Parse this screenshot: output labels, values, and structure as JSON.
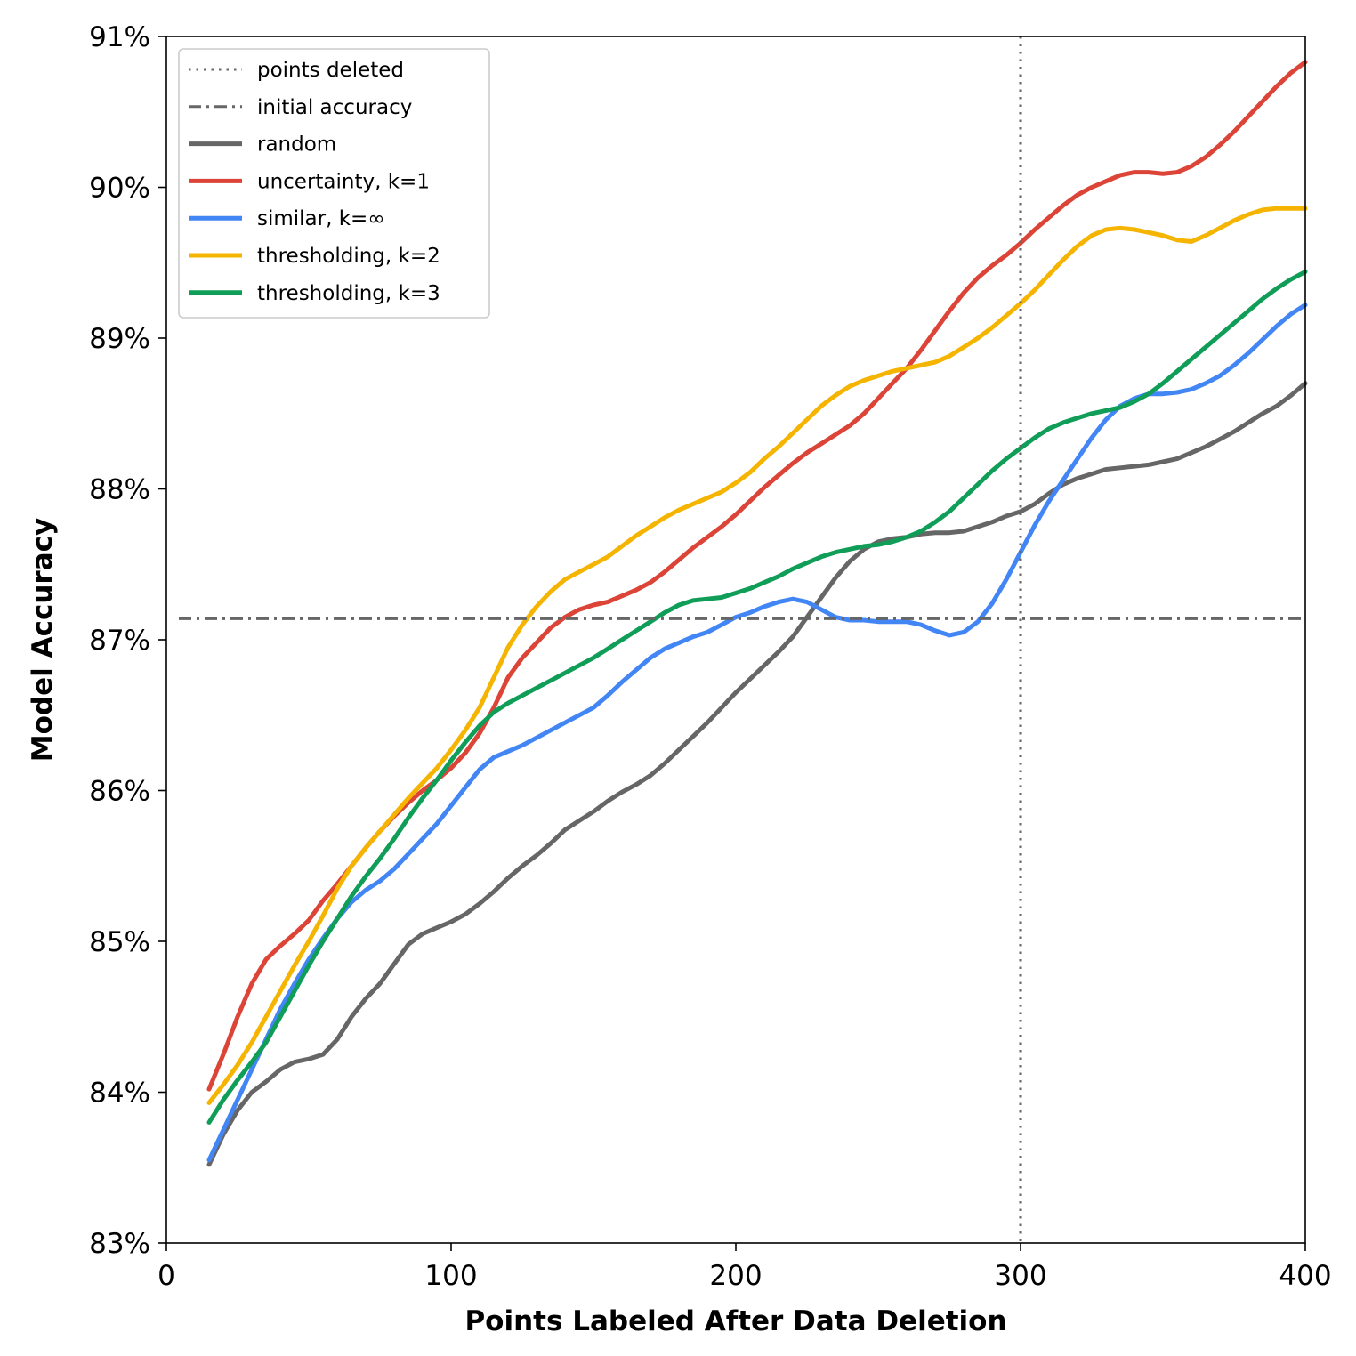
{
  "chart_data": {
    "type": "line",
    "xlabel": "Points Labeled After Data Deletion",
    "ylabel": "Model Accuracy",
    "xlim": [
      0,
      400
    ],
    "ylim": [
      83,
      91
    ],
    "x_ticks": [
      0,
      100,
      200,
      300,
      400
    ],
    "y_ticks": [
      83,
      84,
      85,
      86,
      87,
      88,
      89,
      90,
      91
    ],
    "x_tick_labels": [
      "0",
      "100",
      "200",
      "300",
      "400"
    ],
    "y_tick_labels": [
      "83%",
      "84%",
      "85%",
      "86%",
      "87%",
      "88%",
      "89%",
      "90%",
      "91%"
    ],
    "grid": false,
    "legend_position": "upper-left",
    "reference_lines": [
      {
        "name": "points deleted",
        "orientation": "vertical",
        "value": 300,
        "style": "dotted",
        "color": "#666666"
      },
      {
        "name": "initial accuracy",
        "orientation": "horizontal",
        "value": 87.14,
        "style": "dashdot",
        "color": "#666666"
      }
    ],
    "series": [
      {
        "name": "random",
        "color": "#666666",
        "x": [
          15,
          20,
          25,
          30,
          35,
          40,
          45,
          50,
          55,
          60,
          65,
          70,
          75,
          80,
          85,
          90,
          95,
          100,
          105,
          110,
          115,
          120,
          125,
          130,
          135,
          140,
          145,
          150,
          155,
          160,
          165,
          170,
          175,
          180,
          185,
          190,
          195,
          200,
          205,
          210,
          215,
          220,
          225,
          230,
          235,
          240,
          245,
          250,
          255,
          260,
          265,
          270,
          275,
          280,
          285,
          290,
          295,
          300,
          305,
          310,
          315,
          320,
          325,
          330,
          335,
          340,
          345,
          350,
          355,
          360,
          365,
          370,
          375,
          380,
          385,
          390,
          395,
          400
        ],
        "values": [
          83.52,
          83.72,
          83.88,
          84.0,
          84.07,
          84.15,
          84.2,
          84.22,
          84.25,
          84.35,
          84.5,
          84.62,
          84.72,
          84.85,
          84.98,
          85.05,
          85.09,
          85.13,
          85.18,
          85.25,
          85.33,
          85.42,
          85.5,
          85.57,
          85.65,
          85.74,
          85.8,
          85.86,
          85.93,
          85.99,
          86.04,
          86.1,
          86.18,
          86.27,
          86.36,
          86.45,
          86.55,
          86.65,
          86.74,
          86.83,
          86.92,
          87.02,
          87.15,
          87.28,
          87.41,
          87.52,
          87.6,
          87.65,
          87.67,
          87.68,
          87.7,
          87.71,
          87.71,
          87.72,
          87.75,
          87.78,
          87.82,
          87.85,
          87.9,
          87.97,
          88.03,
          88.07,
          88.1,
          88.13,
          88.14,
          88.15,
          88.16,
          88.18,
          88.2,
          88.24,
          88.28,
          88.33,
          88.38,
          88.44,
          88.5,
          88.55,
          88.62,
          88.7
        ]
      },
      {
        "name": "uncertainty, k=1",
        "color": "#db4437",
        "x": [
          15,
          20,
          25,
          30,
          35,
          40,
          45,
          50,
          55,
          60,
          65,
          70,
          75,
          80,
          85,
          90,
          95,
          100,
          105,
          110,
          115,
          120,
          125,
          130,
          135,
          140,
          145,
          150,
          155,
          160,
          165,
          170,
          175,
          180,
          185,
          190,
          195,
          200,
          205,
          210,
          215,
          220,
          225,
          230,
          235,
          240,
          245,
          250,
          255,
          260,
          265,
          270,
          275,
          280,
          285,
          290,
          295,
          300,
          305,
          310,
          315,
          320,
          325,
          330,
          335,
          340,
          345,
          350,
          355,
          360,
          365,
          370,
          375,
          380,
          385,
          390,
          395,
          400
        ],
        "values": [
          84.02,
          84.25,
          84.5,
          84.72,
          84.88,
          84.97,
          85.05,
          85.14,
          85.27,
          85.38,
          85.5,
          85.62,
          85.73,
          85.83,
          85.92,
          86.0,
          86.07,
          86.15,
          86.25,
          86.38,
          86.55,
          86.75,
          86.88,
          86.98,
          87.08,
          87.15,
          87.2,
          87.23,
          87.25,
          87.29,
          87.33,
          87.38,
          87.45,
          87.53,
          87.61,
          87.68,
          87.75,
          87.83,
          87.92,
          88.01,
          88.09,
          88.17,
          88.24,
          88.3,
          88.36,
          88.42,
          88.5,
          88.6,
          88.7,
          88.8,
          88.92,
          89.05,
          89.18,
          89.3,
          89.4,
          89.48,
          89.55,
          89.63,
          89.72,
          89.8,
          89.88,
          89.95,
          90.0,
          90.04,
          90.08,
          90.1,
          90.1,
          90.09,
          90.1,
          90.14,
          90.2,
          90.28,
          90.37,
          90.47,
          90.57,
          90.67,
          90.76,
          90.83
        ]
      },
      {
        "name": "similar, k=∞",
        "color": "#4285f4",
        "x": [
          15,
          20,
          25,
          30,
          35,
          40,
          45,
          50,
          55,
          60,
          65,
          70,
          75,
          80,
          85,
          90,
          95,
          100,
          105,
          110,
          115,
          120,
          125,
          130,
          135,
          140,
          145,
          150,
          155,
          160,
          165,
          170,
          175,
          180,
          185,
          190,
          195,
          200,
          205,
          210,
          215,
          220,
          225,
          230,
          235,
          240,
          245,
          250,
          255,
          260,
          265,
          270,
          275,
          280,
          285,
          290,
          295,
          300,
          305,
          310,
          315,
          320,
          325,
          330,
          335,
          340,
          345,
          350,
          355,
          360,
          365,
          370,
          375,
          380,
          385,
          390,
          395,
          400
        ],
        "values": [
          83.55,
          83.75,
          83.95,
          84.15,
          84.35,
          84.55,
          84.72,
          84.88,
          85.02,
          85.15,
          85.26,
          85.34,
          85.4,
          85.48,
          85.58,
          85.68,
          85.78,
          85.9,
          86.02,
          86.14,
          86.22,
          86.26,
          86.3,
          86.35,
          86.4,
          86.45,
          86.5,
          86.55,
          86.63,
          86.72,
          86.8,
          86.88,
          86.94,
          86.98,
          87.02,
          87.05,
          87.1,
          87.15,
          87.18,
          87.22,
          87.25,
          87.27,
          87.25,
          87.2,
          87.15,
          87.13,
          87.13,
          87.12,
          87.12,
          87.12,
          87.1,
          87.06,
          87.03,
          87.05,
          87.12,
          87.24,
          87.4,
          87.58,
          87.76,
          87.92,
          88.06,
          88.2,
          88.34,
          88.46,
          88.55,
          88.6,
          88.63,
          88.63,
          88.64,
          88.66,
          88.7,
          88.75,
          88.82,
          88.9,
          88.99,
          89.08,
          89.16,
          89.22
        ]
      },
      {
        "name": "thresholding, k=2",
        "color": "#f4b400",
        "x": [
          15,
          20,
          25,
          30,
          35,
          40,
          45,
          50,
          55,
          60,
          65,
          70,
          75,
          80,
          85,
          90,
          95,
          100,
          105,
          110,
          115,
          120,
          125,
          130,
          135,
          140,
          145,
          150,
          155,
          160,
          165,
          170,
          175,
          180,
          185,
          190,
          195,
          200,
          205,
          210,
          215,
          220,
          225,
          230,
          235,
          240,
          245,
          250,
          255,
          260,
          265,
          270,
          275,
          280,
          285,
          290,
          295,
          300,
          305,
          310,
          315,
          320,
          325,
          330,
          335,
          340,
          345,
          350,
          355,
          360,
          365,
          370,
          375,
          380,
          385,
          390,
          395,
          400
        ],
        "values": [
          83.93,
          84.05,
          84.18,
          84.33,
          84.5,
          84.67,
          84.84,
          85.0,
          85.17,
          85.35,
          85.5,
          85.62,
          85.73,
          85.84,
          85.95,
          86.05,
          86.15,
          86.27,
          86.4,
          86.55,
          86.75,
          86.95,
          87.1,
          87.22,
          87.32,
          87.4,
          87.45,
          87.5,
          87.55,
          87.62,
          87.69,
          87.75,
          87.81,
          87.86,
          87.9,
          87.94,
          87.98,
          88.04,
          88.11,
          88.2,
          88.28,
          88.37,
          88.46,
          88.55,
          88.62,
          88.68,
          88.72,
          88.75,
          88.78,
          88.8,
          88.82,
          88.84,
          88.88,
          88.94,
          89.0,
          89.07,
          89.15,
          89.23,
          89.32,
          89.42,
          89.52,
          89.61,
          89.68,
          89.72,
          89.73,
          89.72,
          89.7,
          89.68,
          89.65,
          89.64,
          89.68,
          89.73,
          89.78,
          89.82,
          89.85,
          89.86,
          89.86,
          89.86
        ]
      },
      {
        "name": "thresholding, k=3",
        "color": "#0f9d58",
        "x": [
          15,
          20,
          25,
          30,
          35,
          40,
          45,
          50,
          55,
          60,
          65,
          70,
          75,
          80,
          85,
          90,
          95,
          100,
          105,
          110,
          115,
          120,
          125,
          130,
          135,
          140,
          145,
          150,
          155,
          160,
          165,
          170,
          175,
          180,
          185,
          190,
          195,
          200,
          205,
          210,
          215,
          220,
          225,
          230,
          235,
          240,
          245,
          250,
          255,
          260,
          265,
          270,
          275,
          280,
          285,
          290,
          295,
          300,
          305,
          310,
          315,
          320,
          325,
          330,
          335,
          340,
          345,
          350,
          355,
          360,
          365,
          370,
          375,
          380,
          385,
          390,
          395,
          400
        ],
        "values": [
          83.8,
          83.95,
          84.08,
          84.2,
          84.33,
          84.5,
          84.67,
          84.84,
          85.0,
          85.15,
          85.3,
          85.43,
          85.55,
          85.68,
          85.82,
          85.95,
          86.07,
          86.2,
          86.32,
          86.43,
          86.52,
          86.58,
          86.63,
          86.68,
          86.73,
          86.78,
          86.83,
          86.88,
          86.94,
          87.0,
          87.06,
          87.12,
          87.18,
          87.23,
          87.26,
          87.27,
          87.28,
          87.31,
          87.34,
          87.38,
          87.42,
          87.47,
          87.51,
          87.55,
          87.58,
          87.6,
          87.62,
          87.63,
          87.65,
          87.68,
          87.72,
          87.78,
          87.85,
          87.94,
          88.03,
          88.12,
          88.2,
          88.27,
          88.34,
          88.4,
          88.44,
          88.47,
          88.5,
          88.52,
          88.54,
          88.58,
          88.63,
          88.7,
          88.78,
          88.86,
          88.94,
          89.02,
          89.1,
          89.18,
          89.26,
          89.33,
          89.39,
          89.44
        ]
      }
    ]
  }
}
